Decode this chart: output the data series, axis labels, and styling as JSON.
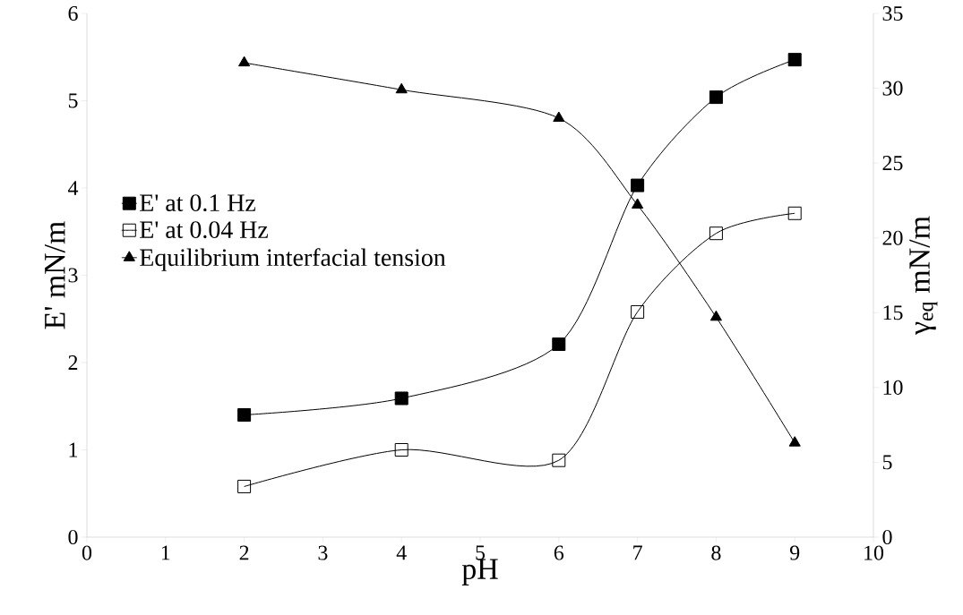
{
  "chart_data": {
    "type": "line",
    "xlabel": "pH",
    "ylabel": "E' mN/m",
    "y2label": "γ$_{eq}$ mN/m",
    "xlim": [
      0,
      10
    ],
    "xticks": [
      0,
      1,
      2,
      3,
      4,
      5,
      6,
      7,
      8,
      9,
      10
    ],
    "ylim": [
      0,
      6
    ],
    "yticks": [
      0,
      1,
      2,
      3,
      4,
      5,
      6
    ],
    "y2lim": [
      0,
      35
    ],
    "y2ticks": [
      0,
      5,
      10,
      15,
      20,
      25,
      30,
      35
    ],
    "legend": "left",
    "grid": false,
    "series": [
      {
        "name": "E' at 0.1 Hz",
        "color": "#000000",
        "marker": "square",
        "x": [
          2,
          4,
          6,
          7,
          8,
          9
        ],
        "values": [
          1.4,
          1.59,
          2.21,
          4.03,
          5.04,
          5.47
        ]
      },
      {
        "name": "E' at 0.04 Hz",
        "color": "#000000",
        "marker": "square",
        "x": [
          2,
          4,
          6,
          7,
          8,
          9
        ],
        "values": [
          0.58,
          1.0,
          0.88,
          2.58,
          3.48,
          3.71
        ]
      },
      {
        "name": "Equilibrium interfacial tension",
        "color": "#000000",
        "marker": "triangle",
        "axis": "y2",
        "x": [
          2,
          4,
          6,
          7,
          8,
          9
        ],
        "values": [
          31.7,
          29.9,
          28.0,
          22.2,
          14.7,
          6.3
        ]
      }
    ]
  }
}
